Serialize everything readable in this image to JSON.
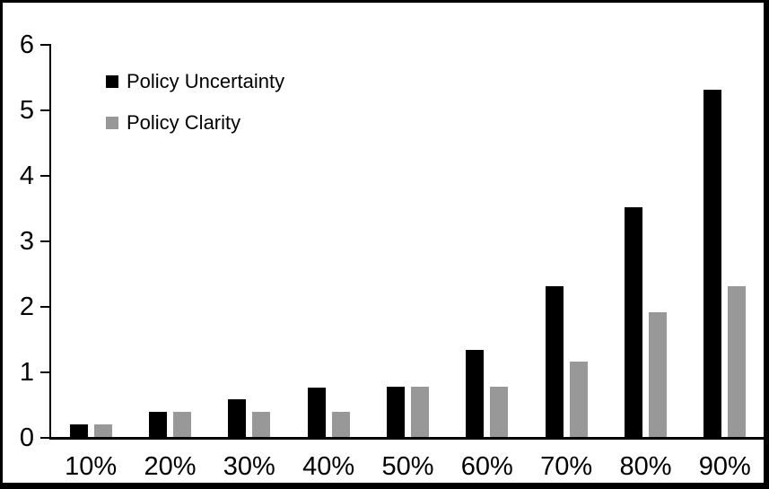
{
  "chart_data": {
    "type": "bar",
    "title": "",
    "xlabel": "",
    "ylabel": "",
    "categories": [
      "10%",
      "20%",
      "30%",
      "40%",
      "50%",
      "60%",
      "70%",
      "80%",
      "90%"
    ],
    "series": [
      {
        "name": "Policy Uncertainty",
        "color": "#000000",
        "values": [
          0.19,
          0.38,
          0.57,
          0.76,
          0.77,
          1.33,
          2.3,
          3.5,
          5.3
        ]
      },
      {
        "name": "Policy Clarity",
        "color": "#989898",
        "values": [
          0.19,
          0.38,
          0.38,
          0.38,
          0.77,
          0.77,
          1.15,
          1.9,
          2.3
        ]
      }
    ],
    "ylim": [
      0,
      6
    ],
    "yticks": [
      0,
      1,
      2,
      3,
      4,
      5,
      6
    ],
    "grid": false,
    "legend_position": "inside-top-left"
  },
  "colors": {
    "background": "#ffffff",
    "axis": "#000000",
    "frame_border": "#000000"
  }
}
